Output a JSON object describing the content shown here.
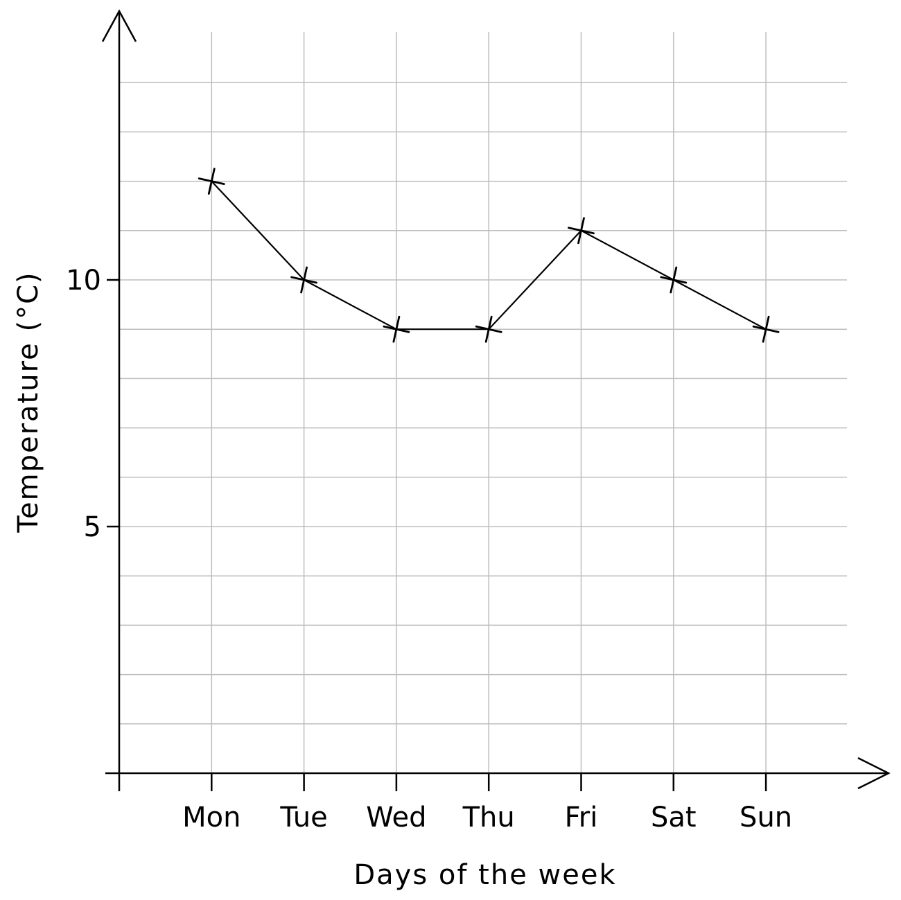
{
  "chart_data": {
    "type": "line",
    "xlabel": "Days of the week",
    "ylabel": "Temperature (°C)",
    "categories": [
      "Mon",
      "Tue",
      "Wed",
      "Thu",
      "Fri",
      "Sat",
      "Sun"
    ],
    "values": [
      12,
      10,
      9,
      9,
      11,
      10,
      9
    ],
    "ylim": [
      0,
      14
    ],
    "yticks": [
      5,
      10
    ],
    "ytick_labels": [
      "5",
      "10"
    ],
    "grid": true,
    "marker": "cross",
    "colors": {
      "line": "#000000",
      "grid": "#bdbdbd"
    }
  }
}
